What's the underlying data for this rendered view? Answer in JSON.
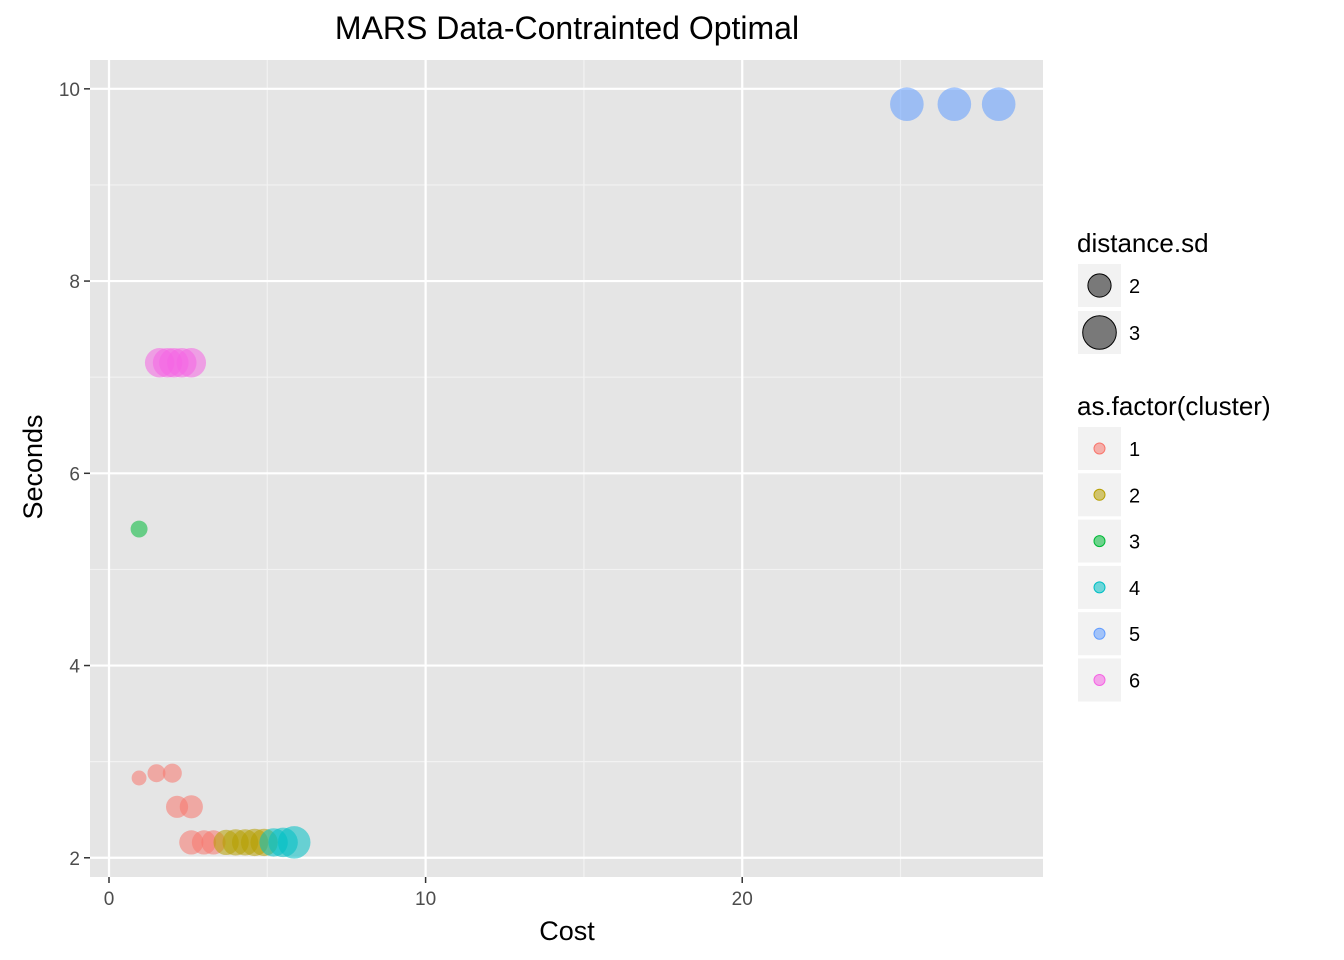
{
  "chart_data": {
    "type": "scatter",
    "title": "MARS Data-Contrainted Optimal",
    "xlabel": "Cost",
    "ylabel": "Seconds",
    "xlim": [
      -0.6,
      29.5
    ],
    "ylim": [
      1.8,
      10.3
    ],
    "x_ticks": [
      0,
      10,
      20
    ],
    "y_ticks": [
      2,
      4,
      6,
      8,
      10
    ],
    "grid": true,
    "legend_position": "right",
    "size_legend": {
      "title": "distance.sd",
      "entries": [
        {
          "label": "2",
          "value": 2
        },
        {
          "label": "3",
          "value": 3
        }
      ]
    },
    "color_legend": {
      "title": "as.factor(cluster)",
      "entries": [
        {
          "label": "1",
          "color": "#F8766D"
        },
        {
          "label": "2",
          "color": "#B79F00"
        },
        {
          "label": "3",
          "color": "#00BA38"
        },
        {
          "label": "4",
          "color": "#00BFC4"
        },
        {
          "label": "5",
          "color": "#619CFF"
        },
        {
          "label": "6",
          "color": "#F564E3"
        }
      ]
    },
    "points": [
      {
        "x": 0.95,
        "y": 2.83,
        "cluster": 1,
        "size": 1.2
      },
      {
        "x": 1.5,
        "y": 2.88,
        "cluster": 1,
        "size": 1.5
      },
      {
        "x": 2.0,
        "y": 2.88,
        "cluster": 1,
        "size": 1.6
      },
      {
        "x": 2.15,
        "y": 2.53,
        "cluster": 1,
        "size": 1.9
      },
      {
        "x": 2.6,
        "y": 2.53,
        "cluster": 1,
        "size": 2.0
      },
      {
        "x": 2.6,
        "y": 2.16,
        "cluster": 1,
        "size": 2.1
      },
      {
        "x": 3.0,
        "y": 2.16,
        "cluster": 1,
        "size": 2.1
      },
      {
        "x": 3.3,
        "y": 2.16,
        "cluster": 1,
        "size": 2.1
      },
      {
        "x": 3.7,
        "y": 2.16,
        "cluster": 2,
        "size": 2.2
      },
      {
        "x": 4.0,
        "y": 2.16,
        "cluster": 2,
        "size": 2.3
      },
      {
        "x": 4.3,
        "y": 2.16,
        "cluster": 2,
        "size": 2.3
      },
      {
        "x": 4.6,
        "y": 2.16,
        "cluster": 2,
        "size": 2.4
      },
      {
        "x": 4.9,
        "y": 2.16,
        "cluster": 2,
        "size": 2.4
      },
      {
        "x": 5.2,
        "y": 2.16,
        "cluster": 4,
        "size": 2.5
      },
      {
        "x": 5.5,
        "y": 2.16,
        "cluster": 4,
        "size": 2.6
      },
      {
        "x": 5.85,
        "y": 2.16,
        "cluster": 4,
        "size": 2.9
      },
      {
        "x": 0.95,
        "y": 5.42,
        "cluster": 3,
        "size": 1.4
      },
      {
        "x": 1.6,
        "y": 7.15,
        "cluster": 6,
        "size": 2.6
      },
      {
        "x": 1.85,
        "y": 7.15,
        "cluster": 6,
        "size": 2.6
      },
      {
        "x": 2.05,
        "y": 7.15,
        "cluster": 6,
        "size": 2.6
      },
      {
        "x": 2.3,
        "y": 7.15,
        "cluster": 6,
        "size": 2.6
      },
      {
        "x": 2.6,
        "y": 7.15,
        "cluster": 6,
        "size": 2.6
      },
      {
        "x": 25.2,
        "y": 9.84,
        "cluster": 5,
        "size": 3.0
      },
      {
        "x": 26.7,
        "y": 9.84,
        "cluster": 5,
        "size": 3.0
      },
      {
        "x": 28.1,
        "y": 9.84,
        "cluster": 5,
        "size": 3.0
      }
    ]
  }
}
